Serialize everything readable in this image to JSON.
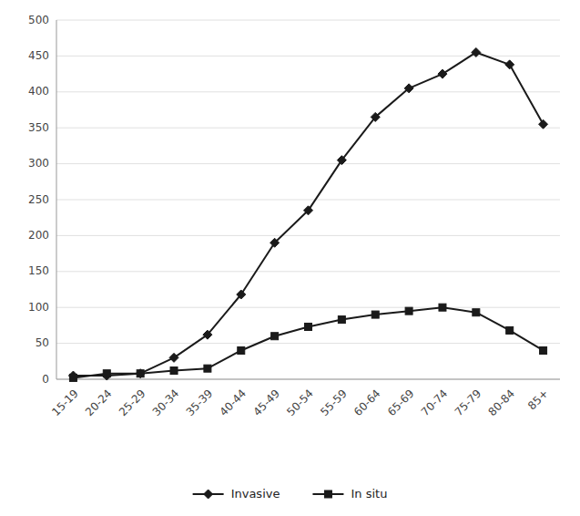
{
  "chart_data": {
    "type": "line",
    "categories": [
      "15-19",
      "20-24",
      "25-29",
      "30-34",
      "35-39",
      "40-44",
      "45-49",
      "50-54",
      "55-59",
      "60-64",
      "65-69",
      "70-74",
      "75-79",
      "80-84",
      "85+"
    ],
    "series": [
      {
        "name": "Invasive",
        "color": "#1a1a1a",
        "marker": "diamond",
        "values": [
          5,
          5,
          8,
          30,
          62,
          118,
          190,
          235,
          305,
          365,
          405,
          425,
          455,
          438,
          355
        ]
      },
      {
        "name": "In situ",
        "color": "#1a1a1a",
        "marker": "square",
        "values": [
          2,
          8,
          8,
          12,
          15,
          40,
          60,
          73,
          83,
          90,
          95,
          100,
          93,
          68,
          40
        ]
      }
    ],
    "ylim": [
      0,
      500
    ],
    "yticks": [
      0,
      50,
      100,
      150,
      200,
      250,
      300,
      350,
      400,
      450,
      500
    ],
    "grid": true,
    "legend": "bottom"
  }
}
